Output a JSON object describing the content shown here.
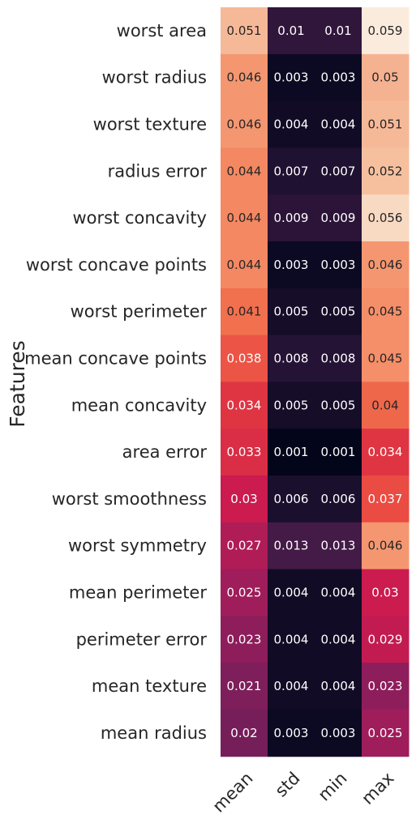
{
  "chart_data": {
    "type": "heatmap",
    "ylabel": "Features",
    "xlabel": "",
    "columns": [
      "mean",
      "std",
      "min",
      "max"
    ],
    "rows": [
      "worst area",
      "worst radius",
      "worst texture",
      "radius error",
      "worst concavity",
      "worst concave points",
      "worst perimeter",
      "mean concave points",
      "mean concavity",
      "area error",
      "worst smoothness",
      "worst symmetry",
      "mean perimeter",
      "perimeter error",
      "mean texture",
      "mean radius"
    ],
    "values": [
      [
        0.051,
        0.01,
        0.01,
        0.059
      ],
      [
        0.046,
        0.003,
        0.003,
        0.05
      ],
      [
        0.046,
        0.004,
        0.004,
        0.051
      ],
      [
        0.044,
        0.007,
        0.007,
        0.052
      ],
      [
        0.044,
        0.009,
        0.009,
        0.056
      ],
      [
        0.044,
        0.003,
        0.003,
        0.046
      ],
      [
        0.041,
        0.005,
        0.005,
        0.045
      ],
      [
        0.038,
        0.008,
        0.008,
        0.045
      ],
      [
        0.034,
        0.005,
        0.005,
        0.04
      ],
      [
        0.033,
        0.001,
        0.001,
        0.034
      ],
      [
        0.03,
        0.006,
        0.006,
        0.037
      ],
      [
        0.027,
        0.013,
        0.013,
        0.046
      ],
      [
        0.025,
        0.004,
        0.004,
        0.03
      ],
      [
        0.023,
        0.004,
        0.004,
        0.029
      ],
      [
        0.021,
        0.004,
        0.004,
        0.023
      ],
      [
        0.02,
        0.003,
        0.003,
        0.025
      ]
    ],
    "value_labels": [
      [
        "0.051",
        "0.01",
        "0.01",
        "0.059"
      ],
      [
        "0.046",
        "0.003",
        "0.003",
        "0.05"
      ],
      [
        "0.046",
        "0.004",
        "0.004",
        "0.051"
      ],
      [
        "0.044",
        "0.007",
        "0.007",
        "0.052"
      ],
      [
        "0.044",
        "0.009",
        "0.009",
        "0.056"
      ],
      [
        "0.044",
        "0.003",
        "0.003",
        "0.046"
      ],
      [
        "0.041",
        "0.005",
        "0.005",
        "0.045"
      ],
      [
        "0.038",
        "0.008",
        "0.008",
        "0.045"
      ],
      [
        "0.034",
        "0.005",
        "0.005",
        "0.04"
      ],
      [
        "0.033",
        "0.001",
        "0.001",
        "0.034"
      ],
      [
        "0.03",
        "0.006",
        "0.006",
        "0.037"
      ],
      [
        "0.027",
        "0.013",
        "0.013",
        "0.046"
      ],
      [
        "0.025",
        "0.004",
        "0.004",
        "0.03"
      ],
      [
        "0.023",
        "0.004",
        "0.004",
        "0.029"
      ],
      [
        "0.021",
        "0.004",
        "0.004",
        "0.023"
      ],
      [
        "0.02",
        "0.003",
        "0.003",
        "0.025"
      ]
    ],
    "colormap": "rocket",
    "color_range": [
      0.001,
      0.059
    ],
    "colorbar": false,
    "grid": false
  }
}
